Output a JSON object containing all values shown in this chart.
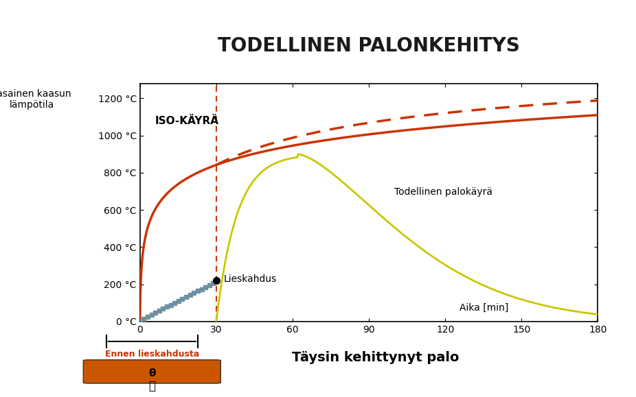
{
  "title": "TODELLINEN PALONKEHITYS",
  "ylabel": "Tasainen kaasun\nlämpötila",
  "xlabel_axis": "Aika [min]",
  "xlabel_bottom1": "Ennen lieskahdusta",
  "xlabel_bottom2": "Täysin kehittynyt palo",
  "yticks": [
    0,
    200,
    400,
    600,
    800,
    1000,
    1200
  ],
  "ytick_labels": [
    "0 °C",
    "200 °C",
    "400 °C",
    "600 °C",
    "800 °C",
    "1000 °C",
    "1200 °C"
  ],
  "xticks": [
    0,
    30,
    60,
    90,
    120,
    150,
    180
  ],
  "xlim": [
    0,
    180
  ],
  "ylim": [
    0,
    1280
  ],
  "iso_label": "ISO-KÄYRÄ",
  "real_label": "Todellinen palokäyrä",
  "flashover_label": "Lieskahdus",
  "bg_color": "#f0f0f0",
  "outer_bg": "#b0bec5",
  "title_bg": "#e8e800",
  "title_color": "#1a1a1a",
  "iso_color": "#cc3300",
  "real_color": "#cccc00",
  "pregrowth_color": "#808080",
  "flashover_x": 30,
  "flashover_y": 220
}
